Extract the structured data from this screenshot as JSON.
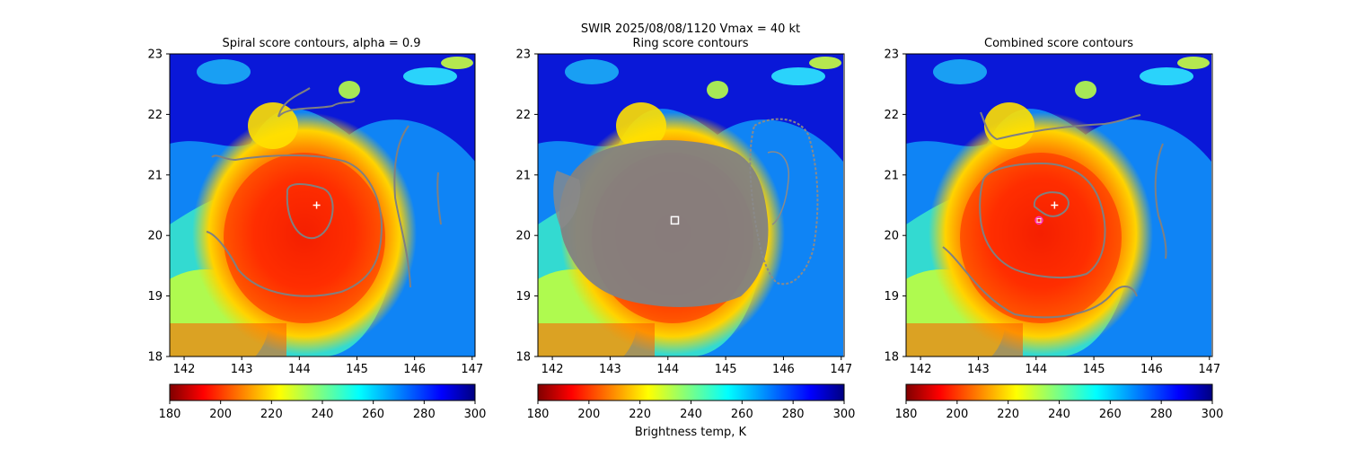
{
  "suptitle": {
    "line1": "SWIR  2025/08/08/1120    Vmax = 40 kt"
  },
  "colorbar": {
    "label": "Brightness temp, K",
    "range": [
      180,
      300
    ],
    "ticks": [
      "180",
      "200",
      "220",
      "240",
      "260",
      "280",
      "300"
    ]
  },
  "chart_data": [
    {
      "type": "heatmap",
      "title": "Spiral score contours, alpha =  0.9",
      "x_range": [
        141.75,
        147.05
      ],
      "y_range": [
        18,
        23
      ],
      "x_ticks": [
        "142",
        "143",
        "144",
        "145",
        "146",
        "147"
      ],
      "y_ticks": [
        "18",
        "19",
        "20",
        "21",
        "22",
        "23"
      ],
      "colormap": "jet",
      "value_range_K": [
        180,
        300
      ],
      "markers": [
        {
          "kind": "plus",
          "color": "#ffffff",
          "lon": 144.3,
          "lat": 20.5
        }
      ]
    },
    {
      "type": "heatmap",
      "title": "Ring score contours",
      "x_range": [
        141.75,
        147.05
      ],
      "y_range": [
        18,
        23
      ],
      "x_ticks": [
        "142",
        "143",
        "144",
        "145",
        "146",
        "147"
      ],
      "y_ticks": [
        "18",
        "19",
        "20",
        "21",
        "22",
        "23"
      ],
      "colormap": "jet",
      "value_range_K": [
        180,
        300
      ],
      "markers": [
        {
          "kind": "square",
          "color": "#ffffff",
          "lon": 144.12,
          "lat": 20.25
        }
      ]
    },
    {
      "type": "heatmap",
      "title": "Combined score contours",
      "x_range": [
        141.75,
        147.05
      ],
      "y_range": [
        18,
        23
      ],
      "x_ticks": [
        "142",
        "143",
        "144",
        "145",
        "146",
        "147"
      ],
      "y_ticks": [
        "18",
        "19",
        "20",
        "21",
        "22",
        "23"
      ],
      "colormap": "jet",
      "value_range_K": [
        180,
        300
      ],
      "markers": [
        {
          "kind": "plus",
          "color": "#ffffff",
          "lon": 144.32,
          "lat": 20.5
        },
        {
          "kind": "circle",
          "color": "#ff33cc",
          "lon": 144.05,
          "lat": 20.25
        }
      ]
    }
  ]
}
